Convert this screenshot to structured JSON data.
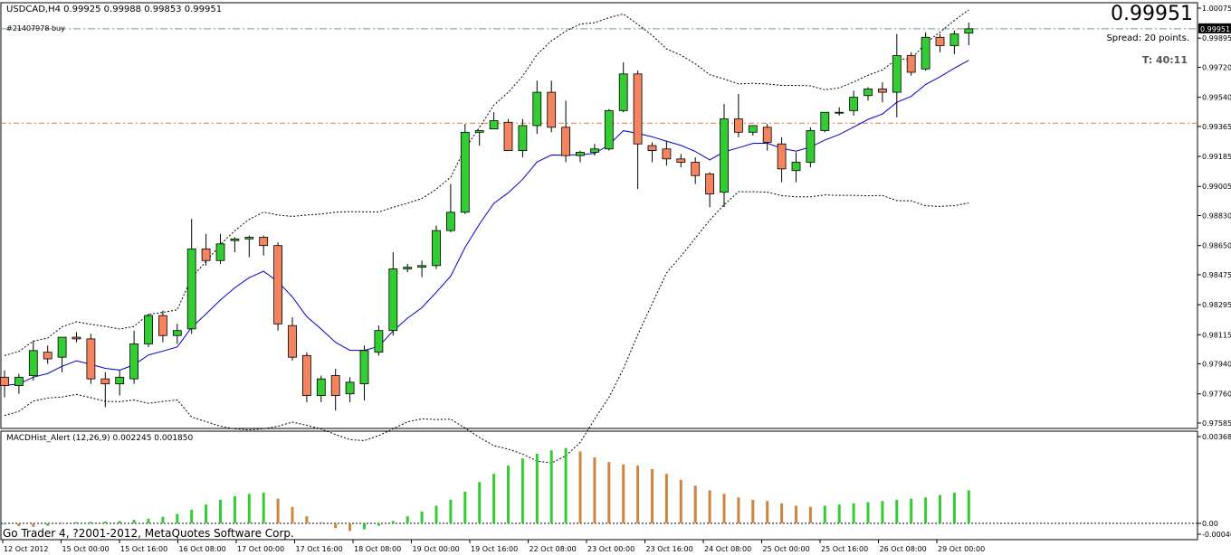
{
  "header": {
    "symbol_line": "USDCAD,H4  0.99925 0.99988 0.99853 0.99951",
    "order_label": "#21407978 buy",
    "current_price": "0.99951",
    "spread": "Spread: 20 points.",
    "timer": "T:  40:11"
  },
  "indicator": {
    "label": "MACDHist_Alert (12,26,9)  0.002245 0.001850"
  },
  "footer": {
    "copyright": "Go Trader 4, ?2001-2012, MetaQuotes Software Corp."
  },
  "colors": {
    "bull": "#33CC33",
    "bear": "#F4845F",
    "hist_down": "#CD853F",
    "ma": "#0000CC",
    "order_line": "#66AA66",
    "level_line": "#DD7733"
  },
  "chart_data": {
    "type": "candlestick",
    "symbol": "USDCAD",
    "timeframe": "H4",
    "price_axis": {
      "range": [
        0.97585,
        1.00075
      ],
      "ticks": [
        "1.00075",
        "0.99895",
        "0.99720",
        "0.99540",
        "0.99365",
        "0.99185",
        "0.99005",
        "0.98830",
        "0.98650",
        "0.98475",
        "0.98295",
        "0.98115",
        "0.97940",
        "0.97760",
        "0.97585"
      ],
      "current_badge": "0.99951"
    },
    "macd_axis": {
      "range": [
        -0.00046,
        0.00368
      ],
      "ticks": [
        "0.00368",
        "0.00",
        "-0.00046"
      ]
    },
    "time_labels": [
      "12 Oct 2012",
      "15 Oct 00:00",
      "15 Oct 16:00",
      "16 Oct 08:00",
      "17 Oct 00:00",
      "17 Oct 16:00",
      "18 Oct 08:00",
      "19 Oct 00:00",
      "19 Oct 16:00",
      "22 Oct 08:00",
      "23 Oct 00:00",
      "23 Oct 16:00",
      "24 Oct 08:00",
      "25 Oct 00:00",
      "25 Oct 16:00",
      "26 Oct 08:00",
      "29 Oct 00:00"
    ],
    "order_price": 0.99951,
    "level_price": 0.99385,
    "candles": [
      [
        0.9786,
        0.979,
        0.9774,
        0.9781
      ],
      [
        0.9781,
        0.9788,
        0.9776,
        0.9786
      ],
      [
        0.9787,
        0.9808,
        0.9784,
        0.9802
      ],
      [
        0.9801,
        0.9805,
        0.9794,
        0.9797
      ],
      [
        0.9798,
        0.981,
        0.9789,
        0.981
      ],
      [
        0.981,
        0.9813,
        0.9807,
        0.9809
      ],
      [
        0.9809,
        0.9812,
        0.9782,
        0.9785
      ],
      [
        0.9785,
        0.9789,
        0.9768,
        0.9782
      ],
      [
        0.9782,
        0.979,
        0.9775,
        0.9786
      ],
      [
        0.9785,
        0.9814,
        0.9782,
        0.9806
      ],
      [
        0.9806,
        0.9824,
        0.9804,
        0.9823
      ],
      [
        0.9823,
        0.9826,
        0.9807,
        0.9811
      ],
      [
        0.9811,
        0.9818,
        0.9806,
        0.9814
      ],
      [
        0.9815,
        0.9881,
        0.9812,
        0.9863
      ],
      [
        0.9863,
        0.9872,
        0.9853,
        0.9856
      ],
      [
        0.9856,
        0.9872,
        0.9854,
        0.9866
      ],
      [
        0.9868,
        0.987,
        0.9861,
        0.9869
      ],
      [
        0.9869,
        0.9871,
        0.9858,
        0.987
      ],
      [
        0.987,
        0.9871,
        0.9859,
        0.9865
      ],
      [
        0.9865,
        0.9867,
        0.9814,
        0.9818
      ],
      [
        0.9817,
        0.9822,
        0.9796,
        0.9798
      ],
      [
        0.9799,
        0.9801,
        0.9771,
        0.9775
      ],
      [
        0.9775,
        0.9787,
        0.9771,
        0.9785
      ],
      [
        0.9787,
        0.9791,
        0.9766,
        0.9775
      ],
      [
        0.9776,
        0.9786,
        0.9771,
        0.9783
      ],
      [
        0.9782,
        0.9805,
        0.9772,
        0.9802
      ],
      [
        0.9801,
        0.9817,
        0.9799,
        0.9814
      ],
      [
        0.9814,
        0.9861,
        0.9811,
        0.9851
      ],
      [
        0.9851,
        0.9854,
        0.9849,
        0.9852
      ],
      [
        0.9852,
        0.9856,
        0.9846,
        0.9853
      ],
      [
        0.9853,
        0.9877,
        0.9851,
        0.9874
      ],
      [
        0.9874,
        0.9902,
        0.9873,
        0.9885
      ],
      [
        0.9885,
        0.9938,
        0.9884,
        0.9933
      ],
      [
        0.9933,
        0.9934,
        0.9925,
        0.9934
      ],
      [
        0.9935,
        0.9945,
        0.9935,
        0.994
      ],
      [
        0.9939,
        0.9941,
        0.9922,
        0.9922
      ],
      [
        0.9922,
        0.9941,
        0.9918,
        0.9937
      ],
      [
        0.9937,
        0.9964,
        0.9932,
        0.9957
      ],
      [
        0.9957,
        0.9964,
        0.9933,
        0.9936
      ],
      [
        0.9936,
        0.9952,
        0.9915,
        0.9919
      ],
      [
        0.9919,
        0.9922,
        0.9915,
        0.9921
      ],
      [
        0.9921,
        0.9926,
        0.9919,
        0.9923
      ],
      [
        0.9923,
        0.9947,
        0.9922,
        0.9946
      ],
      [
        0.9946,
        0.9975,
        0.9945,
        0.9968
      ],
      [
        0.9968,
        0.997,
        0.9899,
        0.9926
      ],
      [
        0.9925,
        0.9927,
        0.9915,
        0.9922
      ],
      [
        0.9923,
        0.9928,
        0.9913,
        0.9917
      ],
      [
        0.9917,
        0.992,
        0.9912,
        0.9915
      ],
      [
        0.9915,
        0.9918,
        0.9902,
        0.9907
      ],
      [
        0.9908,
        0.9909,
        0.9888,
        0.9896
      ],
      [
        0.9897,
        0.995,
        0.9888,
        0.9941
      ],
      [
        0.9941,
        0.9956,
        0.993,
        0.9933
      ],
      [
        0.9933,
        0.9937,
        0.9931,
        0.9937
      ],
      [
        0.9936,
        0.9938,
        0.9922,
        0.9927
      ],
      [
        0.9926,
        0.993,
        0.9903,
        0.9911
      ],
      [
        0.991,
        0.9921,
        0.9903,
        0.9915
      ],
      [
        0.9915,
        0.9936,
        0.9912,
        0.9934
      ],
      [
        0.9934,
        0.9945,
        0.9933,
        0.9945
      ],
      [
        0.9945,
        0.9948,
        0.9943,
        0.9945
      ],
      [
        0.9946,
        0.9958,
        0.9943,
        0.9954
      ],
      [
        0.9955,
        0.996,
        0.9952,
        0.9959
      ],
      [
        0.9959,
        0.9963,
        0.9951,
        0.9957
      ],
      [
        0.9957,
        0.9992,
        0.9942,
        0.9979
      ],
      [
        0.9979,
        0.9981,
        0.9967,
        0.9969
      ],
      [
        0.9971,
        0.9993,
        0.997,
        0.999
      ],
      [
        0.999,
        0.9992,
        0.9981,
        0.9985
      ],
      [
        0.9985,
        0.9994,
        0.998,
        0.9992
      ],
      [
        0.99925,
        0.99988,
        0.99853,
        0.99951
      ]
    ],
    "macd_hist": [
      -5e-05,
      -0.00012,
      -0.00015,
      -0.0001,
      2e-05,
      5e-05,
      6e-05,
      8e-05,
      0.0001,
      0.00015,
      0.0002,
      0.00028,
      0.0004,
      0.00058,
      0.0008,
      0.001,
      0.00115,
      0.00125,
      0.0013,
      0.00105,
      0.0007,
      0.0003,
      5e-05,
      -0.0002,
      -0.00032,
      -0.00025,
      -0.0001,
      0.0001,
      0.0003,
      0.0005,
      0.00075,
      0.001,
      0.00135,
      0.00175,
      0.0021,
      0.00245,
      0.00275,
      0.00295,
      0.0031,
      0.0032,
      0.00305,
      0.0028,
      0.0026,
      0.0025,
      0.00245,
      0.0023,
      0.0021,
      0.00185,
      0.0016,
      0.0014,
      0.00125,
      0.0011,
      0.001,
      0.00095,
      0.00085,
      0.00075,
      0.0007,
      0.00075,
      0.0008,
      0.00085,
      0.0009,
      0.00095,
      0.001,
      0.00105,
      0.0011,
      0.0012,
      0.0013,
      0.0014
    ]
  }
}
